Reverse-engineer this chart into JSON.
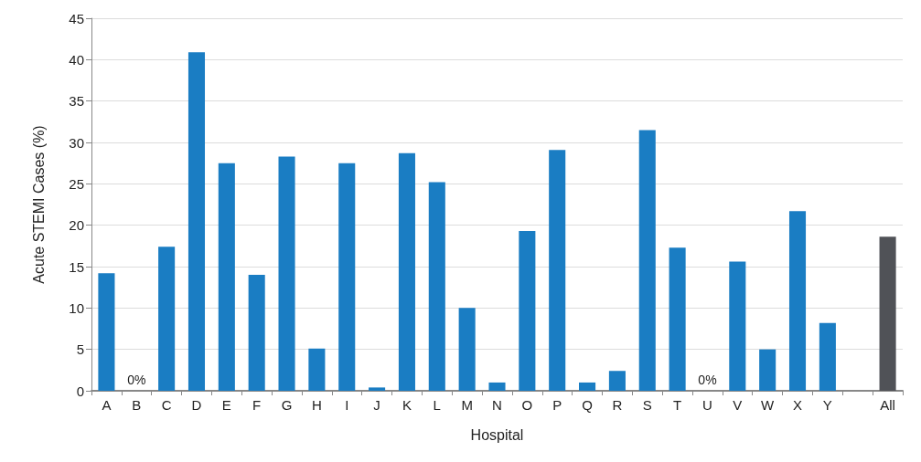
{
  "chart_data": {
    "type": "bar",
    "xlabel": "Hospital",
    "ylabel": "Acute STEMI Cases (%)",
    "categories": [
      "A",
      "B",
      "C",
      "D",
      "E",
      "F",
      "G",
      "H",
      "I",
      "J",
      "K",
      "L",
      "M",
      "N",
      "O",
      "P",
      "Q",
      "R",
      "S",
      "T",
      "U",
      "V",
      "W",
      "X",
      "Y",
      null,
      "All"
    ],
    "values": [
      14.2,
      0,
      17.4,
      40.9,
      27.5,
      14.0,
      28.3,
      5.1,
      27.5,
      0.4,
      28.7,
      25.2,
      10.0,
      1.0,
      19.3,
      29.1,
      1.0,
      2.4,
      31.5,
      17.3,
      0,
      15.6,
      5.0,
      21.7,
      8.2,
      null,
      18.6
    ],
    "colors": [
      "#1a7dc3",
      "#1a7dc3",
      "#1a7dc3",
      "#1a7dc3",
      "#1a7dc3",
      "#1a7dc3",
      "#1a7dc3",
      "#1a7dc3",
      "#1a7dc3",
      "#1a7dc3",
      "#1a7dc3",
      "#1a7dc3",
      "#1a7dc3",
      "#1a7dc3",
      "#1a7dc3",
      "#1a7dc3",
      "#1a7dc3",
      "#1a7dc3",
      "#1a7dc3",
      "#1a7dc3",
      "#1a7dc3",
      "#1a7dc3",
      "#1a7dc3",
      "#1a7dc3",
      "#1a7dc3",
      "#1a7dc3",
      "#505257"
    ],
    "value_labels": [
      null,
      "0%",
      null,
      null,
      null,
      null,
      null,
      null,
      null,
      null,
      null,
      null,
      null,
      null,
      null,
      null,
      null,
      null,
      null,
      null,
      "0%",
      null,
      null,
      null,
      null,
      null,
      null
    ],
    "ylim": [
      0,
      45
    ],
    "yticks": [
      0,
      5,
      10,
      15,
      20,
      25,
      30,
      35,
      40,
      45
    ],
    "grid": "y"
  }
}
